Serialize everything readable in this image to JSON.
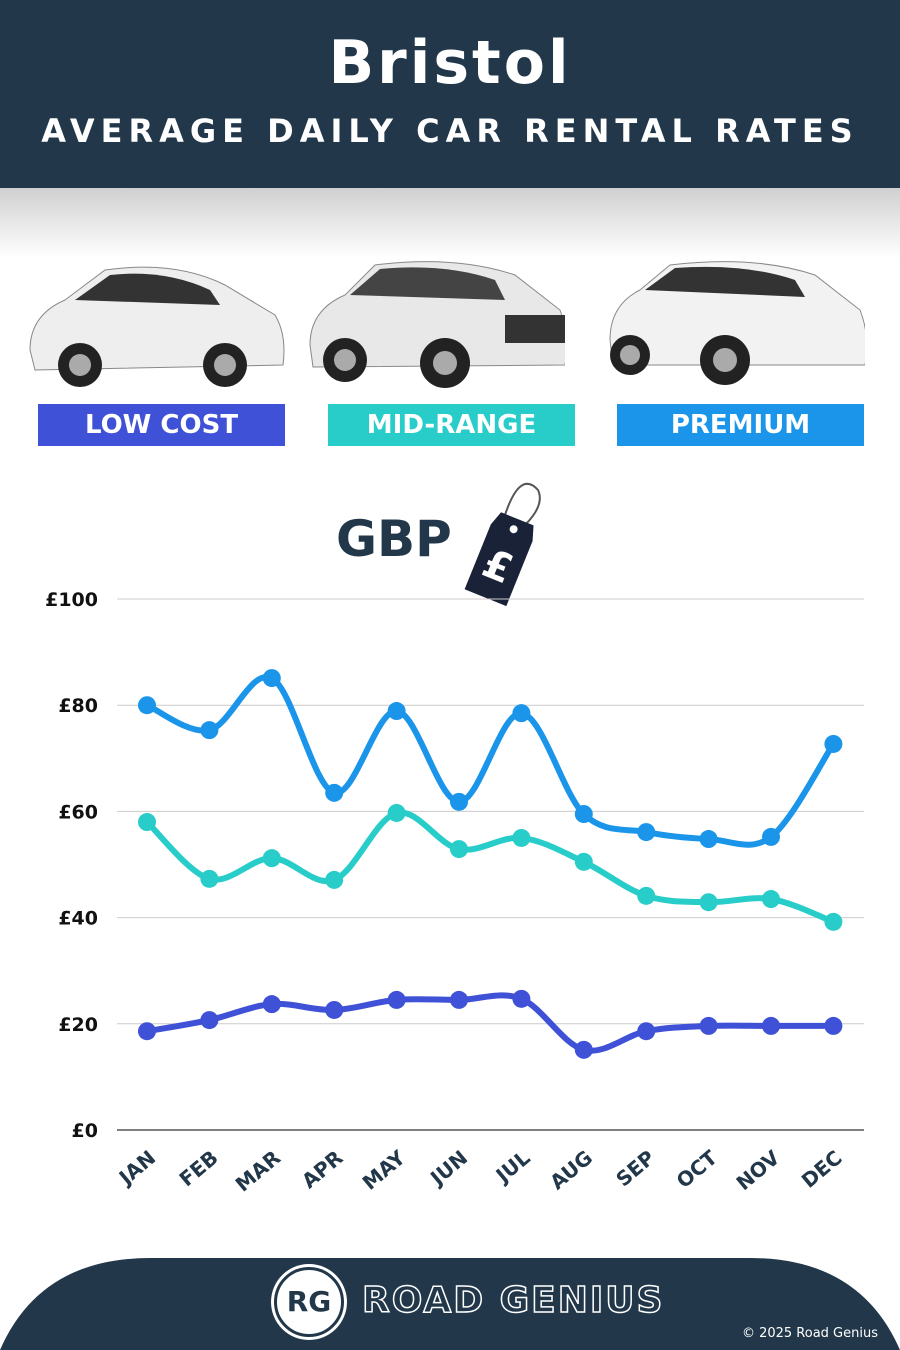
{
  "header": {
    "title": "Bristol",
    "subtitle": "AVERAGE DAILY CAR RENTAL RATES"
  },
  "categories": [
    {
      "label": "LOW COST",
      "color": "#3f51d6"
    },
    {
      "label": "MID-RANGE",
      "color": "#28cdc9"
    },
    {
      "label": "PREMIUM",
      "color": "#1a95ea"
    }
  ],
  "currency": {
    "label": "GBP",
    "symbol": "£"
  },
  "chart_data": {
    "type": "line",
    "title": "Bristol Average Daily Car Rental Rates",
    "xlabel": "",
    "ylabel": "GBP",
    "ylim": [
      0,
      100
    ],
    "yticks": [
      "£0",
      "£20",
      "£40",
      "£60",
      "£80",
      "£100"
    ],
    "grid": true,
    "categories": [
      "JAN",
      "FEB",
      "MAR",
      "APR",
      "MAY",
      "JUN",
      "JUL",
      "AUG",
      "SEP",
      "OCT",
      "NOV",
      "DEC"
    ],
    "series": [
      {
        "name": "PREMIUM",
        "color": "#1a95ea",
        "values": [
          80,
          75.3,
          85.1,
          63.5,
          78.9,
          61.8,
          78.5,
          59.5,
          56.1,
          54.8,
          55.2,
          72.7
        ]
      },
      {
        "name": "MID-RANGE",
        "color": "#28cdc9",
        "values": [
          58,
          47.3,
          51.2,
          47.1,
          59.7,
          52.9,
          55,
          50.5,
          44.1,
          42.9,
          43.5,
          39.2
        ]
      },
      {
        "name": "LOW COST",
        "color": "#3f51d6",
        "values": [
          18.6,
          20.7,
          23.7,
          22.6,
          24.5,
          24.5,
          24.7,
          15.1,
          18.6,
          19.6,
          19.6,
          19.6
        ]
      }
    ]
  },
  "footer": {
    "logo": "RG",
    "brand": "ROAD GENIUS",
    "copyright": "© 2025 Road Genius"
  }
}
